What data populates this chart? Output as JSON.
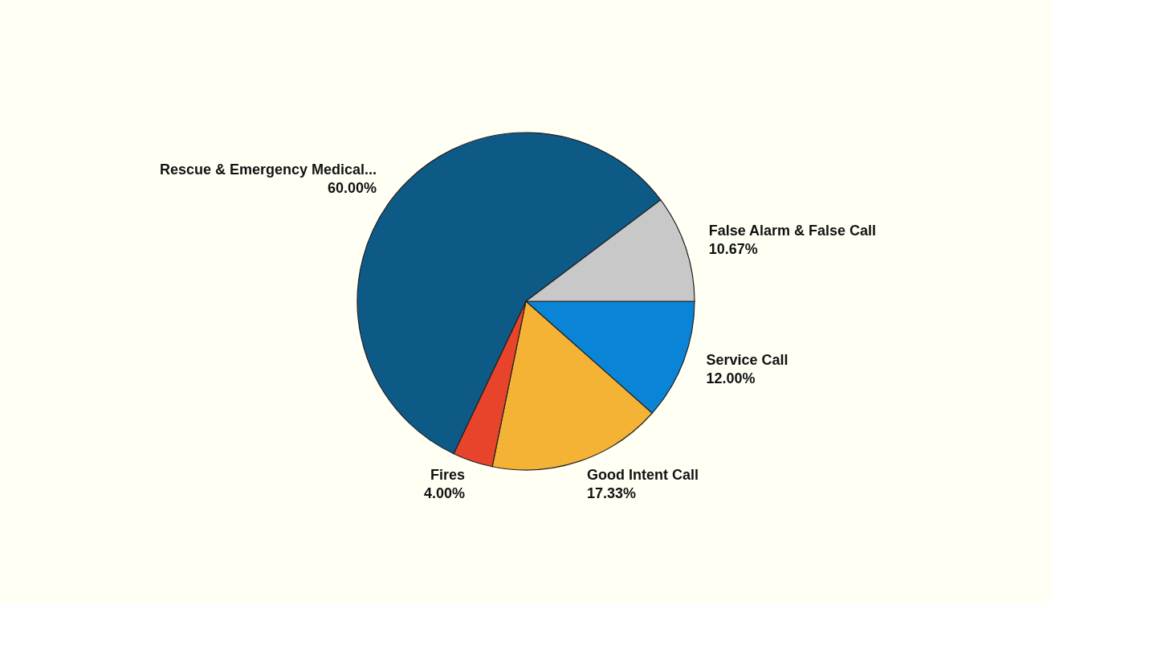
{
  "chart_data": {
    "type": "pie",
    "categories": [
      "Service Call",
      "Good Intent Call",
      "Fires",
      "Rescue & Emergency Medical...",
      "False Alarm & False Call"
    ],
    "values": [
      12.0,
      17.33,
      4.0,
      60.0,
      10.67
    ],
    "colors": [
      "#0a84d6",
      "#f5b335",
      "#e8432b",
      "#0d5a86",
      "#c8c8c8"
    ],
    "value_labels": [
      "12.00%",
      "17.33%",
      "4.00%",
      "60.00%",
      "10.67%"
    ]
  }
}
